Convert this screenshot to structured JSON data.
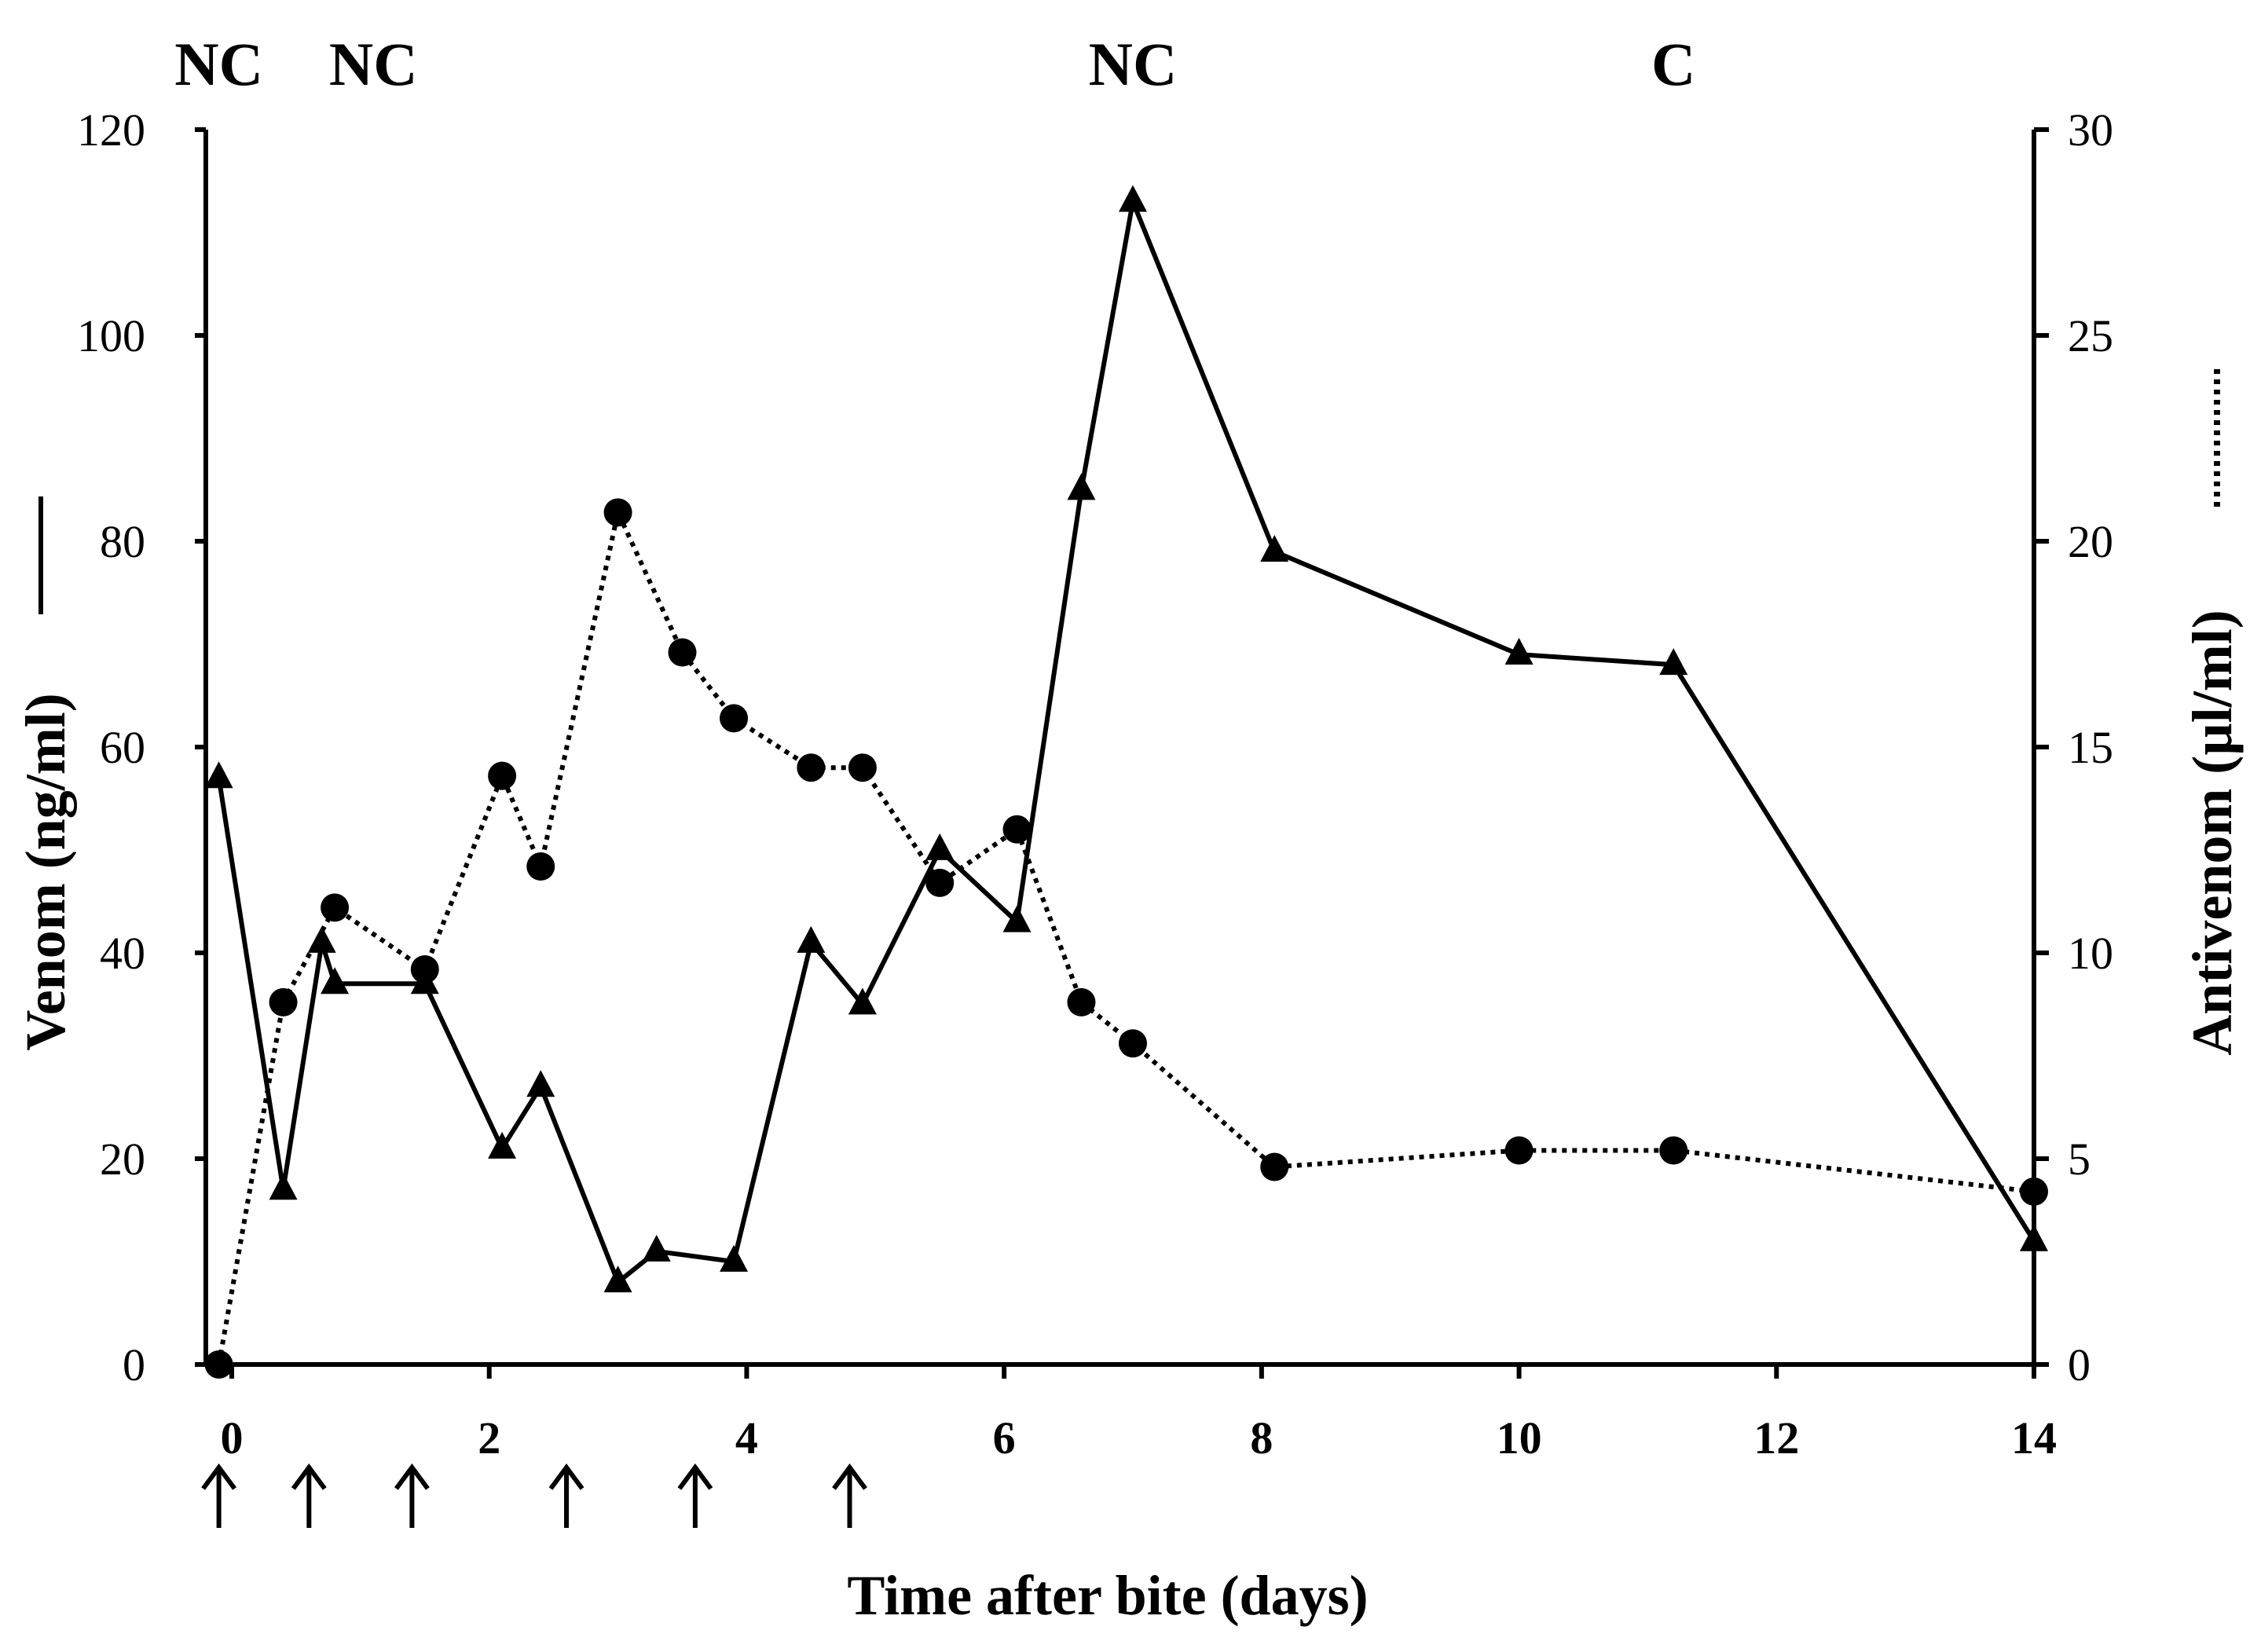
{
  "chart_data": {
    "type": "line",
    "title": "",
    "xlabel": "Time after bite (days)",
    "ylabel": "Venom (ng/ml)",
    "y2label": "Antivenom (µl/ml)",
    "xlim": [
      0,
      14
    ],
    "ylim": [
      0,
      120
    ],
    "y2lim": [
      0,
      30
    ],
    "x_ticks": [
      0,
      2,
      4,
      6,
      8,
      10,
      12,
      14
    ],
    "y_ticks": [
      0,
      20,
      40,
      60,
      80,
      100,
      120
    ],
    "y2_ticks": [
      0,
      5,
      10,
      15,
      20,
      25,
      30
    ],
    "top_labels": [
      {
        "text": "NC",
        "x": -0.1
      },
      {
        "text": "NC",
        "x": 1.1
      },
      {
        "text": "NC",
        "x": 7.0
      },
      {
        "text": "C",
        "x": 11.2
      }
    ],
    "antivenom_doses_days": [
      -0.1,
      0.6,
      1.4,
      2.6,
      3.6,
      4.8
    ],
    "series": [
      {
        "name": "Venom",
        "axis": "left",
        "style": "solid",
        "marker": "triangle",
        "x": [
          -0.1,
          0.4,
          0.7,
          0.8,
          1.5,
          2.1,
          2.4,
          3.0,
          3.3,
          3.9,
          4.5,
          4.9,
          5.5,
          6.1,
          6.6,
          7.0,
          8.1,
          10.0,
          11.2,
          14.0
        ],
        "values": [
          57,
          17,
          41,
          37,
          37,
          21,
          27,
          8,
          11,
          10,
          41,
          35,
          50,
          43,
          85,
          113,
          79,
          69,
          68,
          12
        ]
      },
      {
        "name": "Antivenom",
        "axis": "right",
        "style": "dotted",
        "marker": "circle",
        "x": [
          -0.1,
          0.4,
          0.8,
          1.5,
          2.1,
          2.4,
          3.0,
          3.5,
          3.9,
          4.5,
          4.9,
          5.5,
          6.1,
          6.6,
          7.0,
          8.1,
          10.0,
          11.2,
          14.0
        ],
        "values": [
          0,
          8.8,
          11.1,
          9.6,
          14.3,
          12.1,
          20.7,
          17.3,
          15.7,
          14.5,
          14.5,
          11.7,
          13.0,
          8.8,
          7.8,
          4.8,
          5.2,
          5.2,
          4.2
        ]
      }
    ]
  }
}
